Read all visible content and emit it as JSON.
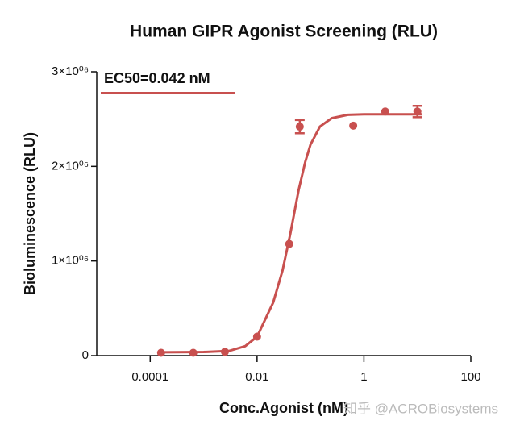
{
  "chart_data": {
    "type": "scatter",
    "title": "Human GIPR Agonist Screening (RLU)",
    "x_label": "Conc.Agonist (nM)",
    "y_label": "Bioluminescence (RLU)",
    "annotation": "EC50=0.042 nM",
    "watermark": "知乎 @ACROBiosystems",
    "color": "#c8504f",
    "x_log": true,
    "x": [
      0.00016,
      0.00064,
      0.0025,
      0.01,
      0.04,
      0.063,
      0.63,
      2.5,
      10
    ],
    "values": [
      30000,
      30000,
      40000,
      200000,
      1180000,
      2420000,
      2430000,
      2580000,
      2580000
    ],
    "errors": [
      null,
      null,
      null,
      null,
      null,
      70000,
      null,
      null,
      60000
    ],
    "curve": {
      "x": [
        0.00016,
        0.001,
        0.003,
        0.006,
        0.01,
        0.02,
        0.03,
        0.042,
        0.06,
        0.08,
        0.1,
        0.15,
        0.25,
        0.5,
        1,
        12
      ],
      "values": [
        35000,
        38000,
        50000,
        100000,
        200000,
        560000,
        900000,
        1290000,
        1750000,
        2050000,
        2230000,
        2420000,
        2510000,
        2545000,
        2550000,
        2550000
      ]
    },
    "xlim": [
      1e-05,
      100
    ],
    "ylim": [
      0,
      3000000
    ],
    "xticks": [
      0.0001,
      0.01,
      1,
      100
    ],
    "yticks": [
      0,
      {
        "value": 1000000,
        "label": "1×10⁰⁶"
      },
      {
        "value": 2000000,
        "label": "2×10⁰⁶"
      },
      {
        "value": 3000000,
        "label": "3×10⁰⁶"
      }
    ]
  }
}
